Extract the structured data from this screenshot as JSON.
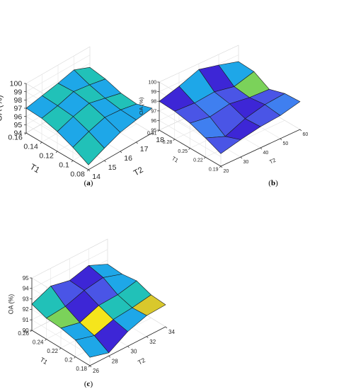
{
  "chart_data": [
    {
      "type": "surface",
      "caption": [
        "(",
        "a",
        ")"
      ],
      "xlabel": "T2",
      "ylabel": "T1",
      "zlabel": "OA (%)",
      "x": [
        14,
        15,
        16,
        17,
        18
      ],
      "y": [
        0.08,
        0.1,
        0.12,
        0.14,
        0.16
      ],
      "xticks": [
        "14",
        "15",
        "16",
        "17",
        "18"
      ],
      "yticks": [
        "0.08",
        "0.1",
        "0.12",
        "0.14",
        "0.16"
      ],
      "zticks": [
        "94",
        "95",
        "96",
        "97",
        "98",
        "99",
        "100"
      ],
      "zlim": [
        94,
        100
      ],
      "colors": [
        "#1ea7e8",
        "#21c1b8",
        "#24d6a3"
      ],
      "z": [
        [
          94.6,
          95.5,
          96.3,
          96.7,
          97.0
        ],
        [
          95.6,
          96.4,
          97.0,
          96.8,
          96.4
        ],
        [
          96.4,
          97.1,
          97.6,
          97.1,
          96.6
        ],
        [
          96.9,
          97.3,
          97.9,
          97.6,
          97.2
        ],
        [
          97.0,
          97.4,
          97.8,
          98.3,
          97.5
        ]
      ],
      "cvals": [
        [
          1,
          0,
          0,
          0
        ],
        [
          0,
          1,
          0,
          1
        ],
        [
          1,
          0,
          1,
          0
        ],
        [
          0,
          1,
          0,
          1
        ]
      ]
    },
    {
      "type": "surface",
      "caption": [
        "(",
        "b",
        ")"
      ],
      "xlabel": "T2",
      "ylabel": "T1",
      "zlabel": "OA (%)",
      "x": [
        20,
        30,
        40,
        50,
        60
      ],
      "y": [
        0.19,
        0.22,
        0.25,
        0.28,
        0.31
      ],
      "xticks": [
        "20",
        "30",
        "40",
        "50",
        "60"
      ],
      "yticks": [
        "0.19",
        "0.22",
        "0.25",
        "0.28",
        "0.31"
      ],
      "zticks": [
        "95",
        "96",
        "97",
        "98",
        "99",
        "100"
      ],
      "zlim": [
        95,
        100
      ],
      "colors": [
        "#3d26d6",
        "#4a55e6",
        "#3f7ff0",
        "#1ea7e8",
        "#7bd25a"
      ],
      "z": [
        [
          96.3,
          96.8,
          97.2,
          97.4,
          97.9
        ],
        [
          97.0,
          96.2,
          97.1,
          97.6,
          97.8
        ],
        [
          97.6,
          97.3,
          97.7,
          97.4,
          97.3
        ],
        [
          97.9,
          97.8,
          98.0,
          97.6,
          98.2
        ],
        [
          98.0,
          98.6,
          99.4,
          98.9,
          98.3
        ]
      ],
      "cvals": [
        [
          1,
          0,
          1,
          2
        ],
        [
          2,
          1,
          0,
          1
        ],
        [
          1,
          2,
          1,
          4
        ],
        [
          0,
          3,
          0,
          3
        ]
      ]
    },
    {
      "type": "surface",
      "caption": [
        "(",
        "c",
        ")"
      ],
      "xlabel": "T2",
      "ylabel": "T1",
      "zlabel": "OA (%)",
      "x": [
        26,
        28,
        30,
        32,
        34
      ],
      "y": [
        0.18,
        0.2,
        0.22,
        0.24,
        0.26
      ],
      "xticks": [
        "26",
        "28",
        "30",
        "32",
        "34"
      ],
      "yticks": [
        "0.18",
        "0.2",
        "0.22",
        "0.24",
        "0.26"
      ],
      "zticks": [
        "90",
        "91",
        "92",
        "93",
        "94",
        "95"
      ],
      "zlim": [
        90,
        95
      ],
      "colors": [
        "#3d26d6",
        "#4a55e6",
        "#1ea7e8",
        "#21c1b8",
        "#7bd25a",
        "#d9c82c",
        "#f5e51c"
      ],
      "z": [
        [
          90.8,
          90.3,
          91.4,
          92.0,
          92.1
        ],
        [
          91.6,
          91.1,
          91.7,
          91.9,
          92.2
        ],
        [
          91.9,
          91.5,
          92.2,
          92.3,
          92.7
        ],
        [
          92.0,
          92.2,
          92.8,
          93.1,
          92.5
        ],
        [
          92.5,
          93.3,
          92.9,
          93.4,
          92.6
        ]
      ],
      "cvals": [
        [
          2,
          0,
          2,
          5
        ],
        [
          2,
          6,
          3,
          3
        ],
        [
          4,
          0,
          1,
          2
        ],
        [
          3,
          1,
          0,
          2
        ]
      ]
    }
  ]
}
